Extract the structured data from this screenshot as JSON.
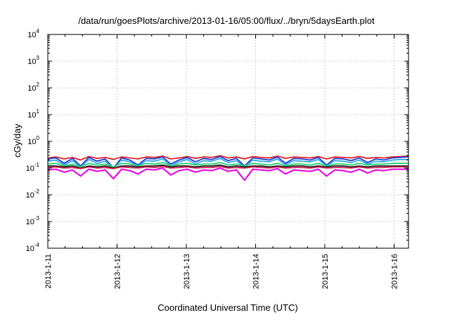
{
  "chart_data": {
    "type": "line",
    "title": "/data/run/goesPlots/archive/2013-01-16/05:00/flux/../bryn/5daysEarth.plot",
    "xlabel": "Coordinated Universal Time (UTC)",
    "ylabel": "cGy/day",
    "yscale": "log",
    "ylim": [
      0.0001,
      10000
    ],
    "y_ticks": [
      {
        "base": "10",
        "exp": "-4",
        "value": 0.0001
      },
      {
        "base": "10",
        "exp": "-3",
        "value": 0.001
      },
      {
        "base": "10",
        "exp": "-2",
        "value": 0.01
      },
      {
        "base": "10",
        "exp": "-1",
        "value": 0.1
      },
      {
        "base": "10",
        "exp": "0",
        "value": 1
      },
      {
        "base": "10",
        "exp": "1",
        "value": 10
      },
      {
        "base": "10",
        "exp": "2",
        "value": 100
      },
      {
        "base": "10",
        "exp": "3",
        "value": 1000
      },
      {
        "base": "10",
        "exp": "4",
        "value": 10000
      }
    ],
    "xlim": [
      "2013-01-11 00:00",
      "2013-01-16 05:00"
    ],
    "x_ticks": [
      "2013-1-11",
      "2013-1-12",
      "2013-1-13",
      "2013-1-14",
      "2013-1-15",
      "2013-1-16"
    ],
    "grid": true,
    "legend": "none",
    "series": [
      {
        "color": "#e4242b",
        "level": 0.24,
        "values": [
          0.24,
          0.26,
          0.22,
          0.25,
          0.2,
          0.27,
          0.23,
          0.25,
          0.21,
          0.26,
          0.24,
          0.22,
          0.26,
          0.25,
          0.28,
          0.22,
          0.24,
          0.27,
          0.23,
          0.26,
          0.25,
          0.29,
          0.24,
          0.26,
          0.22,
          0.27,
          0.25,
          0.24,
          0.28,
          0.23,
          0.26,
          0.25,
          0.24,
          0.27,
          0.22,
          0.26,
          0.25,
          0.24,
          0.27,
          0.23,
          0.25,
          0.24,
          0.26,
          0.27,
          0.28
        ]
      },
      {
        "color": "#1f3fd6",
        "level": 0.21,
        "values": [
          0.22,
          0.24,
          0.15,
          0.23,
          0.12,
          0.25,
          0.18,
          0.22,
          0.1,
          0.24,
          0.2,
          0.13,
          0.23,
          0.22,
          0.26,
          0.14,
          0.2,
          0.25,
          0.17,
          0.23,
          0.21,
          0.27,
          0.19,
          0.23,
          0.12,
          0.24,
          0.22,
          0.2,
          0.26,
          0.15,
          0.23,
          0.22,
          0.2,
          0.25,
          0.13,
          0.23,
          0.22,
          0.19,
          0.24,
          0.16,
          0.22,
          0.2,
          0.24,
          0.25,
          0.26
        ]
      },
      {
        "color": "#34a6e8",
        "level": 0.18,
        "values": [
          0.18,
          0.2,
          0.13,
          0.19,
          0.11,
          0.21,
          0.15,
          0.18,
          0.1,
          0.2,
          0.17,
          0.12,
          0.19,
          0.18,
          0.22,
          0.12,
          0.17,
          0.21,
          0.14,
          0.19,
          0.18,
          0.23,
          0.16,
          0.19,
          0.11,
          0.2,
          0.18,
          0.17,
          0.22,
          0.13,
          0.19,
          0.18,
          0.17,
          0.21,
          0.12,
          0.19,
          0.18,
          0.16,
          0.2,
          0.14,
          0.18,
          0.17,
          0.2,
          0.21,
          0.21
        ]
      },
      {
        "color": "#22d46b",
        "level": 0.14,
        "values": [
          0.14,
          0.15,
          0.12,
          0.14,
          0.11,
          0.15,
          0.13,
          0.14,
          0.11,
          0.15,
          0.14,
          0.12,
          0.15,
          0.14,
          0.16,
          0.12,
          0.14,
          0.15,
          0.13,
          0.14,
          0.14,
          0.16,
          0.13,
          0.14,
          0.12,
          0.15,
          0.14,
          0.13,
          0.15,
          0.12,
          0.14,
          0.14,
          0.13,
          0.15,
          0.12,
          0.14,
          0.14,
          0.13,
          0.15,
          0.13,
          0.14,
          0.14,
          0.15,
          0.15,
          0.15
        ]
      },
      {
        "color": "#222222",
        "level": 0.12,
        "values": [
          0.12,
          0.12,
          0.11,
          0.12,
          0.1,
          0.12,
          0.11,
          0.12,
          0.1,
          0.12,
          0.12,
          0.11,
          0.12,
          0.12,
          0.13,
          0.11,
          0.12,
          0.12,
          0.11,
          0.12,
          0.12,
          0.13,
          0.11,
          0.12,
          0.11,
          0.12,
          0.12,
          0.11,
          0.12,
          0.11,
          0.12,
          0.12,
          0.11,
          0.12,
          0.11,
          0.12,
          0.12,
          0.11,
          0.12,
          0.11,
          0.12,
          0.12,
          0.12,
          0.12,
          0.12
        ]
      },
      {
        "color": "#cc2255",
        "level": 0.105,
        "values": [
          0.105,
          0.11,
          0.1,
          0.105,
          0.095,
          0.11,
          0.1,
          0.105,
          0.095,
          0.11,
          0.105,
          0.1,
          0.11,
          0.105,
          0.115,
          0.1,
          0.105,
          0.11,
          0.1,
          0.105,
          0.105,
          0.115,
          0.1,
          0.105,
          0.1,
          0.11,
          0.105,
          0.1,
          0.11,
          0.1,
          0.105,
          0.105,
          0.1,
          0.11,
          0.1,
          0.105,
          0.105,
          0.1,
          0.11,
          0.1,
          0.105,
          0.105,
          0.11,
          0.11,
          0.11
        ]
      },
      {
        "color": "#ee12e4",
        "level": 0.085,
        "values": [
          0.085,
          0.09,
          0.07,
          0.085,
          0.05,
          0.09,
          0.075,
          0.085,
          0.04,
          0.09,
          0.08,
          0.06,
          0.09,
          0.085,
          0.1,
          0.055,
          0.08,
          0.09,
          0.07,
          0.085,
          0.08,
          0.1,
          0.075,
          0.085,
          0.035,
          0.09,
          0.085,
          0.08,
          0.095,
          0.06,
          0.085,
          0.08,
          0.075,
          0.09,
          0.05,
          0.085,
          0.08,
          0.07,
          0.09,
          0.065,
          0.085,
          0.08,
          0.09,
          0.09,
          0.09
        ]
      }
    ]
  }
}
